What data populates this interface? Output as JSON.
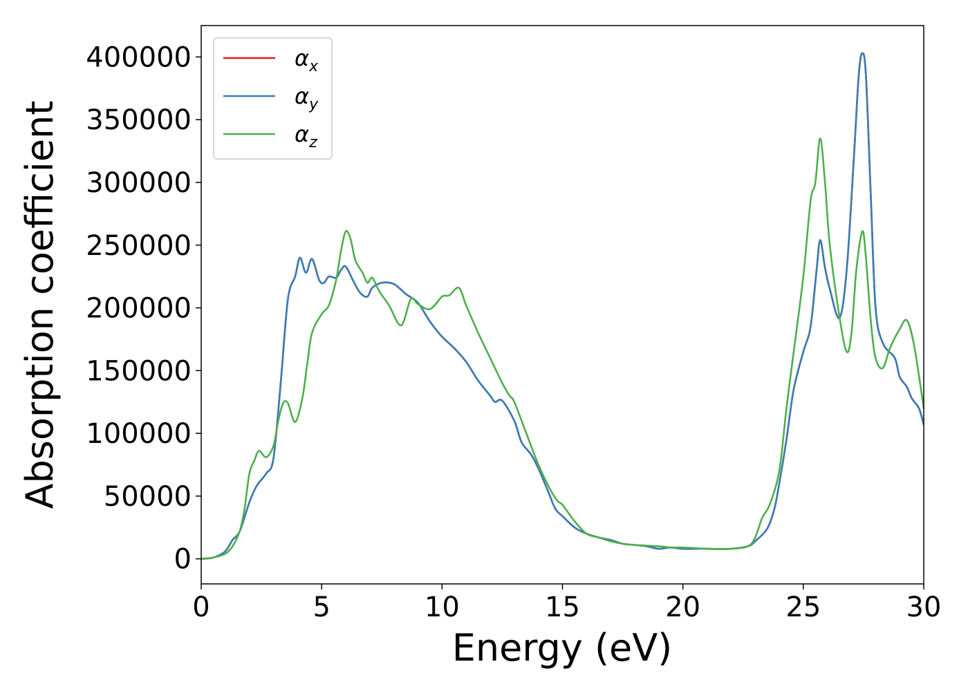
{
  "chart_data": {
    "type": "line",
    "title": "",
    "xlabel": "Energy (eV)",
    "ylabel": "Absorption coefficient",
    "xlim": [
      0,
      30
    ],
    "ylim": [
      -20000,
      425000
    ],
    "xticks": [
      0,
      5,
      10,
      15,
      20,
      25,
      30
    ],
    "yticks": [
      0,
      50000,
      100000,
      150000,
      200000,
      250000,
      300000,
      350000,
      400000
    ],
    "grid": false,
    "legend_position": "top-left",
    "series": [
      {
        "name": "αx",
        "legend_base": "α",
        "legend_sub": "x",
        "color": "#e41a1c",
        "points": [
          [
            0,
            0
          ],
          [
            0.5,
            1000
          ],
          [
            1,
            6000
          ],
          [
            1.3,
            15000
          ],
          [
            1.6,
            22000
          ],
          [
            2,
            45000
          ],
          [
            2.3,
            58000
          ],
          [
            2.7,
            68000
          ],
          [
            3,
            80000
          ],
          [
            3.3,
            140000
          ],
          [
            3.6,
            207000
          ],
          [
            3.9,
            225000
          ],
          [
            4.1,
            240000
          ],
          [
            4.35,
            228000
          ],
          [
            4.6,
            239000
          ],
          [
            4.9,
            222000
          ],
          [
            5.1,
            220000
          ],
          [
            5.3,
            225000
          ],
          [
            5.6,
            224000
          ],
          [
            5.8,
            230000
          ],
          [
            6.0,
            233000
          ],
          [
            6.3,
            222000
          ],
          [
            6.6,
            212000
          ],
          [
            6.9,
            209000
          ],
          [
            7.1,
            216000
          ],
          [
            7.5,
            220000
          ],
          [
            8,
            219000
          ],
          [
            8.5,
            211000
          ],
          [
            9,
            204000
          ],
          [
            9.5,
            189000
          ],
          [
            10,
            177000
          ],
          [
            10.5,
            168000
          ],
          [
            11,
            157000
          ],
          [
            11.5,
            142000
          ],
          [
            12,
            130000
          ],
          [
            12.2,
            125000
          ],
          [
            12.5,
            126000
          ],
          [
            13,
            110000
          ],
          [
            13.3,
            93000
          ],
          [
            13.7,
            83000
          ],
          [
            14,
            72000
          ],
          [
            14.4,
            54000
          ],
          [
            14.7,
            40000
          ],
          [
            15,
            34000
          ],
          [
            15.5,
            25000
          ],
          [
            16,
            20000
          ],
          [
            16.5,
            17000
          ],
          [
            17,
            15000
          ],
          [
            17.5,
            12000
          ],
          [
            18,
            11000
          ],
          [
            18.5,
            10000
          ],
          [
            19,
            8000
          ],
          [
            19.5,
            9000
          ],
          [
            20,
            8000
          ],
          [
            21,
            8000
          ],
          [
            22,
            8000
          ],
          [
            22.7,
            10000
          ],
          [
            23,
            14000
          ],
          [
            23.5,
            24000
          ],
          [
            23.8,
            40000
          ],
          [
            24,
            60000
          ],
          [
            24.3,
            95000
          ],
          [
            24.6,
            135000
          ],
          [
            25,
            165000
          ],
          [
            25.3,
            185000
          ],
          [
            25.55,
            230000
          ],
          [
            25.7,
            254000
          ],
          [
            25.9,
            232000
          ],
          [
            26.1,
            215000
          ],
          [
            26.5,
            192000
          ],
          [
            26.8,
            230000
          ],
          [
            27.1,
            320000
          ],
          [
            27.3,
            385000
          ],
          [
            27.45,
            403000
          ],
          [
            27.6,
            385000
          ],
          [
            27.8,
            290000
          ],
          [
            28,
            200000
          ],
          [
            28.3,
            172000
          ],
          [
            28.8,
            160000
          ],
          [
            29,
            145000
          ],
          [
            29.3,
            137000
          ],
          [
            29.5,
            128000
          ],
          [
            29.8,
            120000
          ],
          [
            30,
            107000
          ]
        ]
      },
      {
        "name": "αy",
        "legend_base": "α",
        "legend_sub": "y",
        "color": "#377eb8",
        "points": [
          [
            0,
            0
          ],
          [
            0.5,
            1000
          ],
          [
            1,
            6000
          ],
          [
            1.3,
            15000
          ],
          [
            1.6,
            22000
          ],
          [
            2,
            45000
          ],
          [
            2.3,
            58000
          ],
          [
            2.7,
            68000
          ],
          [
            3,
            80000
          ],
          [
            3.3,
            140000
          ],
          [
            3.6,
            207000
          ],
          [
            3.9,
            225000
          ],
          [
            4.1,
            240000
          ],
          [
            4.35,
            228000
          ],
          [
            4.6,
            239000
          ],
          [
            4.9,
            222000
          ],
          [
            5.1,
            220000
          ],
          [
            5.3,
            225000
          ],
          [
            5.6,
            224000
          ],
          [
            5.8,
            230000
          ],
          [
            6.0,
            233000
          ],
          [
            6.3,
            222000
          ],
          [
            6.6,
            212000
          ],
          [
            6.9,
            209000
          ],
          [
            7.1,
            216000
          ],
          [
            7.5,
            220000
          ],
          [
            8,
            219000
          ],
          [
            8.5,
            211000
          ],
          [
            9,
            204000
          ],
          [
            9.5,
            189000
          ],
          [
            10,
            177000
          ],
          [
            10.5,
            168000
          ],
          [
            11,
            157000
          ],
          [
            11.5,
            142000
          ],
          [
            12,
            130000
          ],
          [
            12.2,
            125000
          ],
          [
            12.5,
            126000
          ],
          [
            13,
            110000
          ],
          [
            13.3,
            93000
          ],
          [
            13.7,
            83000
          ],
          [
            14,
            72000
          ],
          [
            14.4,
            54000
          ],
          [
            14.7,
            40000
          ],
          [
            15,
            34000
          ],
          [
            15.5,
            25000
          ],
          [
            16,
            20000
          ],
          [
            16.5,
            17000
          ],
          [
            17,
            15000
          ],
          [
            17.5,
            12000
          ],
          [
            18,
            11000
          ],
          [
            18.5,
            10000
          ],
          [
            19,
            8000
          ],
          [
            19.5,
            9000
          ],
          [
            20,
            8000
          ],
          [
            21,
            8000
          ],
          [
            22,
            8000
          ],
          [
            22.7,
            10000
          ],
          [
            23,
            14000
          ],
          [
            23.5,
            24000
          ],
          [
            23.8,
            40000
          ],
          [
            24,
            60000
          ],
          [
            24.3,
            95000
          ],
          [
            24.6,
            135000
          ],
          [
            25,
            165000
          ],
          [
            25.3,
            185000
          ],
          [
            25.55,
            230000
          ],
          [
            25.7,
            254000
          ],
          [
            25.9,
            232000
          ],
          [
            26.1,
            215000
          ],
          [
            26.5,
            192000
          ],
          [
            26.8,
            230000
          ],
          [
            27.1,
            320000
          ],
          [
            27.3,
            385000
          ],
          [
            27.45,
            403000
          ],
          [
            27.6,
            385000
          ],
          [
            27.8,
            290000
          ],
          [
            28,
            200000
          ],
          [
            28.3,
            172000
          ],
          [
            28.8,
            160000
          ],
          [
            29,
            145000
          ],
          [
            29.3,
            137000
          ],
          [
            29.5,
            128000
          ],
          [
            29.8,
            120000
          ],
          [
            30,
            107000
          ]
        ]
      },
      {
        "name": "αz",
        "legend_base": "α",
        "legend_sub": "z",
        "color": "#4daf4a",
        "points": [
          [
            0,
            0
          ],
          [
            0.5,
            1000
          ],
          [
            1,
            4000
          ],
          [
            1.3,
            10000
          ],
          [
            1.6,
            22000
          ],
          [
            1.8,
            40000
          ],
          [
            2,
            68000
          ],
          [
            2.2,
            78000
          ],
          [
            2.4,
            86000
          ],
          [
            2.7,
            81000
          ],
          [
            3,
            90000
          ],
          [
            3.2,
            110000
          ],
          [
            3.4,
            124000
          ],
          [
            3.6,
            124000
          ],
          [
            3.9,
            109000
          ],
          [
            4.2,
            128000
          ],
          [
            4.4,
            155000
          ],
          [
            4.6,
            180000
          ],
          [
            5,
            195000
          ],
          [
            5.3,
            202000
          ],
          [
            5.6,
            222000
          ],
          [
            5.8,
            245000
          ],
          [
            6,
            261000
          ],
          [
            6.2,
            255000
          ],
          [
            6.4,
            238000
          ],
          [
            6.7,
            228000
          ],
          [
            6.9,
            220000
          ],
          [
            7.1,
            224000
          ],
          [
            7.4,
            213000
          ],
          [
            7.8,
            202000
          ],
          [
            8.3,
            186000
          ],
          [
            8.7,
            207000
          ],
          [
            9,
            203000
          ],
          [
            9.5,
            199000
          ],
          [
            10,
            209000
          ],
          [
            10.3,
            210000
          ],
          [
            10.7,
            216000
          ],
          [
            11,
            202000
          ],
          [
            11.5,
            180000
          ],
          [
            12,
            160000
          ],
          [
            12.5,
            140000
          ],
          [
            12.8,
            130000
          ],
          [
            13,
            125000
          ],
          [
            13.5,
            100000
          ],
          [
            14,
            75000
          ],
          [
            14.5,
            55000
          ],
          [
            14.8,
            46000
          ],
          [
            15,
            43000
          ],
          [
            15.5,
            30000
          ],
          [
            16,
            20000
          ],
          [
            16.5,
            17000
          ],
          [
            17,
            14000
          ],
          [
            17.5,
            12000
          ],
          [
            18,
            11000
          ],
          [
            19,
            10000
          ],
          [
            19.5,
            9000
          ],
          [
            20,
            9000
          ],
          [
            21,
            8000
          ],
          [
            22,
            8000
          ],
          [
            22.7,
            10000
          ],
          [
            23,
            17000
          ],
          [
            23.3,
            33000
          ],
          [
            23.6,
            43000
          ],
          [
            24,
            70000
          ],
          [
            24.3,
            120000
          ],
          [
            24.6,
            165000
          ],
          [
            25,
            225000
          ],
          [
            25.3,
            285000
          ],
          [
            25.5,
            300000
          ],
          [
            25.7,
            335000
          ],
          [
            25.9,
            300000
          ],
          [
            26.1,
            250000
          ],
          [
            26.5,
            193000
          ],
          [
            26.8,
            165000
          ],
          [
            27,
            180000
          ],
          [
            27.2,
            230000
          ],
          [
            27.45,
            261000
          ],
          [
            27.6,
            240000
          ],
          [
            27.8,
            190000
          ],
          [
            28,
            160000
          ],
          [
            28.3,
            152000
          ],
          [
            28.6,
            168000
          ],
          [
            29,
            183000
          ],
          [
            29.3,
            190000
          ],
          [
            29.6,
            170000
          ],
          [
            30,
            120000
          ]
        ]
      }
    ]
  }
}
